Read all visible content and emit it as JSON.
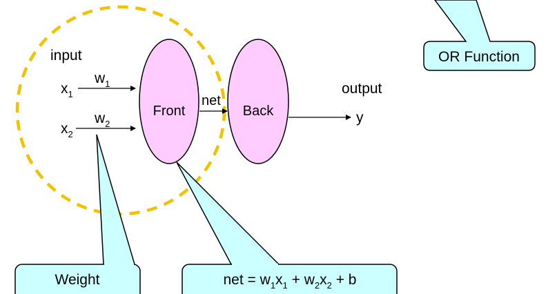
{
  "diagram": {
    "input_label": "input",
    "output_label": "output",
    "x1": {
      "base": "x",
      "sub": "1"
    },
    "x2": {
      "base": "x",
      "sub": "2"
    },
    "w1": {
      "base": "w",
      "sub": "1"
    },
    "w2": {
      "base": "w",
      "sub": "2"
    },
    "front_label": "Front",
    "back_label": "Back",
    "net_label": "net",
    "y_label": "y"
  },
  "callouts": {
    "or_function": "OR Function",
    "weight": "Weight",
    "net_formula": {
      "prefix": "net = ",
      "w1": "w",
      "w1_sub": "1",
      "x1": "x",
      "x1_sub": "1",
      "plus1": " + ",
      "w2": "w",
      "w2_sub": "2",
      "x2": "x",
      "x2_sub": "2",
      "tail": " + b"
    }
  },
  "colors": {
    "neuron_fill": "#ffccff",
    "callout_fill": "#ccffff",
    "dash_circle": "#f2c200"
  }
}
